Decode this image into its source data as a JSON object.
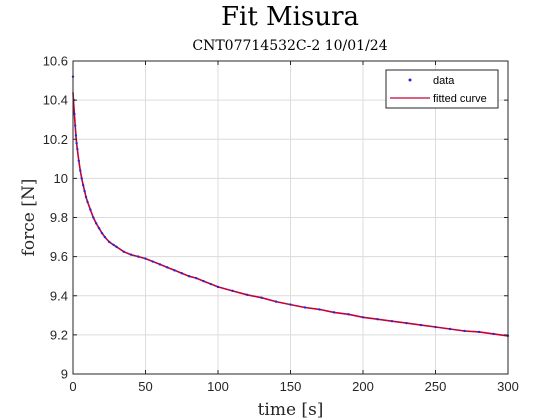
{
  "figure": {
    "title": "Fit Misura",
    "subtitle": "CNT07714532C-2 10/01/24"
  },
  "colors": {
    "data": "#1f2bd8",
    "fit": "#c4003a",
    "grid": "#dcdcdc",
    "axis": "#262626"
  },
  "chart_data": {
    "type": "line",
    "title": "Fit Misura",
    "subtitle": "CNT07714532C-2 10/01/24",
    "xlabel": "time [s]",
    "ylabel": "force [N]",
    "xlim": [
      0,
      300
    ],
    "ylim": [
      9,
      10.6
    ],
    "xticks": [
      0,
      50,
      100,
      150,
      200,
      250,
      300
    ],
    "xtick_labels": [
      "0",
      "50",
      "100",
      "150",
      "200",
      "250",
      "300"
    ],
    "yticks": [
      9,
      9.2,
      9.4,
      9.6,
      9.8,
      10,
      10.2,
      10.4,
      10.6
    ],
    "ytick_labels": [
      "9",
      "9.2",
      "9.4",
      "9.6",
      "9.8",
      "10",
      "10.2",
      "10.4",
      "10.6"
    ],
    "grid": true,
    "legend_position": "top-right",
    "series": [
      {
        "name": "data",
        "style": "points",
        "x": [
          0,
          0.5,
          1,
          1.5,
          2,
          2.5,
          3,
          4,
          5,
          6,
          7,
          8,
          9,
          10,
          12,
          14,
          16,
          18,
          20,
          22,
          25,
          28,
          30,
          35,
          40,
          45,
          50,
          55,
          60,
          65,
          70,
          75,
          80,
          85,
          90,
          95,
          100,
          110,
          120,
          130,
          140,
          150,
          160,
          170,
          180,
          190,
          200,
          210,
          220,
          230,
          240,
          250,
          260,
          270,
          280,
          290,
          300
        ],
        "y": [
          10.52,
          10.4,
          10.33,
          10.27,
          10.22,
          10.18,
          10.15,
          10.09,
          10.04,
          10.0,
          9.965,
          9.935,
          9.905,
          9.88,
          9.84,
          9.8,
          9.77,
          9.745,
          9.72,
          9.7,
          9.675,
          9.66,
          9.65,
          9.625,
          9.61,
          9.6,
          9.59,
          9.575,
          9.56,
          9.545,
          9.53,
          9.515,
          9.5,
          9.49,
          9.475,
          9.46,
          9.445,
          9.425,
          9.405,
          9.39,
          9.37,
          9.355,
          9.34,
          9.33,
          9.315,
          9.305,
          9.29,
          9.28,
          9.27,
          9.26,
          9.25,
          9.24,
          9.23,
          9.22,
          9.215,
          9.205,
          9.195
        ]
      },
      {
        "name": "fitted curve",
        "style": "line",
        "x": [
          0,
          0.5,
          1,
          1.5,
          2,
          2.5,
          3,
          4,
          5,
          6,
          7,
          8,
          9,
          10,
          12,
          14,
          16,
          18,
          20,
          22,
          25,
          28,
          30,
          35,
          40,
          45,
          50,
          55,
          60,
          65,
          70,
          75,
          80,
          85,
          90,
          95,
          100,
          110,
          120,
          130,
          140,
          150,
          160,
          170,
          180,
          190,
          200,
          210,
          220,
          230,
          240,
          250,
          260,
          270,
          280,
          290,
          300
        ],
        "y": [
          10.44,
          10.38,
          10.32,
          10.27,
          10.22,
          10.18,
          10.15,
          10.09,
          10.04,
          10.0,
          9.965,
          9.935,
          9.905,
          9.88,
          9.84,
          9.8,
          9.77,
          9.745,
          9.72,
          9.7,
          9.675,
          9.66,
          9.65,
          9.625,
          9.61,
          9.6,
          9.59,
          9.575,
          9.56,
          9.545,
          9.53,
          9.515,
          9.5,
          9.49,
          9.475,
          9.46,
          9.445,
          9.425,
          9.405,
          9.39,
          9.37,
          9.355,
          9.34,
          9.33,
          9.315,
          9.305,
          9.29,
          9.28,
          9.27,
          9.26,
          9.25,
          9.24,
          9.23,
          9.22,
          9.215,
          9.205,
          9.195
        ]
      }
    ]
  }
}
